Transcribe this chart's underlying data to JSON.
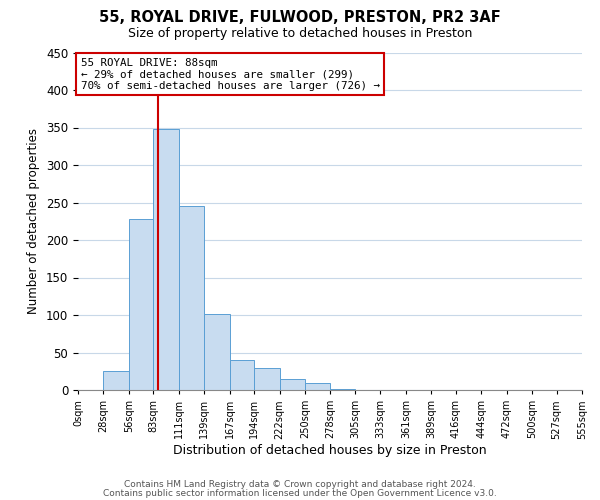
{
  "title": "55, ROYAL DRIVE, FULWOOD, PRESTON, PR2 3AF",
  "subtitle": "Size of property relative to detached houses in Preston",
  "xlabel": "Distribution of detached houses by size in Preston",
  "ylabel": "Number of detached properties",
  "bar_color": "#c8dcf0",
  "bar_edge_color": "#5a9fd4",
  "background_color": "#ffffff",
  "grid_color": "#c8d8e8",
  "annotation_border_color": "#cc0000",
  "vline_color": "#cc0000",
  "footer1": "Contains HM Land Registry data © Crown copyright and database right 2024.",
  "footer2": "Contains public sector information licensed under the Open Government Licence v3.0.",
  "annotation_line1": "55 ROYAL DRIVE: 88sqm",
  "annotation_line2": "← 29% of detached houses are smaller (299)",
  "annotation_line3": "70% of semi-detached houses are larger (726) →",
  "property_sqm": 88,
  "bin_edges": [
    0,
    28,
    56,
    83,
    111,
    139,
    167,
    194,
    222,
    250,
    278,
    305,
    333,
    361,
    389,
    416,
    444,
    472,
    500,
    527,
    555
  ],
  "bar_heights": [
    0,
    25,
    228,
    348,
    246,
    101,
    40,
    30,
    15,
    10,
    1,
    0,
    0,
    0,
    0,
    0,
    0,
    0,
    0,
    0
  ],
  "ylim": [
    0,
    450
  ],
  "yticks": [
    0,
    50,
    100,
    150,
    200,
    250,
    300,
    350,
    400,
    450
  ]
}
